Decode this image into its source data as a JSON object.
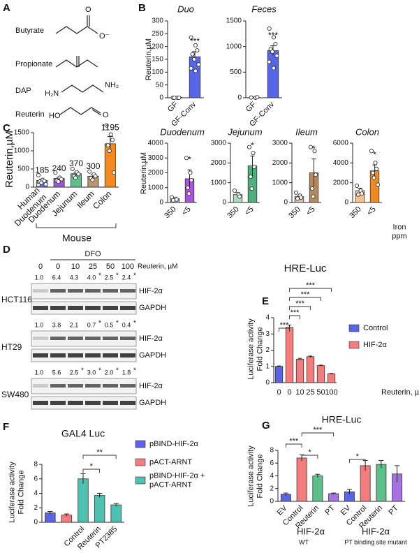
{
  "panel_letters": [
    "A",
    "B",
    "C",
    "D",
    "E",
    "F",
    "G"
  ],
  "panel_a": {
    "molecules": [
      {
        "name": "Butyrate",
        "atoms": [
          "O",
          "O⁻"
        ]
      },
      {
        "name": "Propionate",
        "atoms": []
      },
      {
        "name": "DAP",
        "atoms": [
          "H₂N",
          "NH₂"
        ]
      },
      {
        "name": "Reuterin",
        "atoms": [
          "HO",
          "O"
        ]
      }
    ]
  },
  "panel_d": {
    "treatment": "DFO",
    "concentrations": [
      "0",
      "0",
      "10",
      "25",
      "50",
      "100"
    ],
    "unit": "Reuterin, µM",
    "proteins": [
      "HIF-2α",
      "GAPDH"
    ],
    "blots": [
      {
        "cell_line": "HCT116",
        "quant": [
          "1.0",
          "6.4",
          "4.3",
          "4.0",
          "2.5",
          "2.4"
        ],
        "stars": [
          null,
          null,
          null,
          "*",
          "*",
          "*"
        ]
      },
      {
        "cell_line": "HT29",
        "quant": [
          "1.0",
          "3.8",
          "2.1",
          "0.7",
          "0.5",
          "0.4"
        ],
        "stars": [
          null,
          null,
          null,
          "*",
          "*",
          "*"
        ]
      },
      {
        "cell_line": "SW480",
        "quant": [
          "1.0",
          "5.6",
          "2.5",
          "3.0",
          "2.0",
          "1.8"
        ],
        "stars": [
          null,
          null,
          "*",
          "*",
          "*",
          "*"
        ]
      }
    ]
  },
  "chart_data": [
    {
      "type": "bar",
      "title": "Duo",
      "ylabel": "Reuterin,µM",
      "categories": [
        "GF",
        "GF-Conv"
      ],
      "values": [
        2,
        160
      ],
      "errors": [
        1,
        20
      ],
      "colors": [
        "#ffffff",
        "#5566e8"
      ],
      "points": [
        [
          0,
          0,
          0,
          0
        ],
        [
          235,
          205,
          185,
          170,
          150,
          130,
          115,
          105
        ]
      ],
      "ylim": [
        0,
        300
      ],
      "yticks": [
        0,
        50,
        100,
        150,
        200,
        250,
        300
      ],
      "annotations": [
        "***"
      ]
    },
    {
      "type": "bar",
      "title": "Feces",
      "categories": [
        "GF",
        "GF-Conv"
      ],
      "values": [
        5,
        920
      ],
      "errors": [
        5,
        95
      ],
      "colors": [
        "#ffffff",
        "#5566e8"
      ],
      "points": [
        [
          5,
          0,
          10
        ],
        [
          1350,
          1180,
          1050,
          950,
          900,
          820,
          700,
          580
        ]
      ],
      "ylim": [
        0,
        1500
      ],
      "yticks": [
        0,
        500,
        1000,
        1500
      ],
      "annotations": [
        "***"
      ]
    },
    {
      "type": "bar",
      "ylabel": "Reuterin,µM",
      "categories": [
        "Human\nDuodenum",
        "Duodenum",
        "Jejunum",
        "Ileum",
        "Colon"
      ],
      "values": [
        185,
        240,
        370,
        300,
        1195
      ],
      "errors": [
        35,
        30,
        40,
        35,
        200
      ],
      "show_values": true,
      "colors": [
        "#5b6ef0",
        "#9a55d8",
        "#5dc08a",
        "#b8956a",
        "#f58b1f"
      ],
      "points": [
        [
          330,
          200,
          170,
          150,
          120,
          80,
          60
        ],
        [
          400,
          260,
          220,
          180,
          150
        ],
        [
          500,
          410,
          360,
          300,
          260
        ],
        [
          430,
          350,
          300,
          250,
          200
        ],
        [
          1700,
          1450,
          1300,
          1150,
          1000,
          400
        ]
      ],
      "ylim": [
        0,
        1500
      ],
      "yticks": [
        0,
        500,
        1000,
        1500
      ],
      "group_labels": [
        "Mouse"
      ]
    },
    {
      "type": "bar",
      "title": "Duodenum",
      "ylabel": "Reuterin,µM",
      "categories": [
        "350",
        "<5"
      ],
      "values": [
        250,
        1600
      ],
      "errors": [
        60,
        600
      ],
      "colors": [
        "#c7a8ef",
        "#a955d8"
      ],
      "points": [
        [
          350,
          250,
          200,
          150
        ],
        [
          3000,
          2000,
          1500,
          1000,
          600
        ]
      ],
      "ylim": [
        0,
        4000
      ],
      "yticks": [
        0,
        1000,
        2000,
        3000,
        4000
      ],
      "annotations": [
        "*"
      ]
    },
    {
      "type": "bar",
      "title": "Jejunum",
      "categories": [
        "350",
        "<5"
      ],
      "values": [
        400,
        1850
      ],
      "errors": [
        100,
        500
      ],
      "colors": [
        "#a8dcc0",
        "#4caf7d"
      ],
      "points": [
        [
          600,
          400,
          300
        ],
        [
          2800,
          2500,
          1800,
          1300,
          700
        ]
      ],
      "ylim": [
        0,
        3000
      ],
      "yticks": [
        0,
        1000,
        2000,
        3000
      ],
      "annotations": [
        "*"
      ]
    },
    {
      "type": "bar",
      "title": "Ileum",
      "categories": [
        "350",
        "<5"
      ],
      "values": [
        300,
        1500
      ],
      "errors": [
        60,
        700
      ],
      "colors": [
        "#d6c2a8",
        "#b58a5a"
      ],
      "points": [
        [
          500,
          350,
          250,
          200
        ],
        [
          2800,
          2600,
          1400,
          700,
          300
        ]
      ],
      "ylim": [
        0,
        3000
      ],
      "yticks": [
        0,
        1000,
        2000,
        3000
      ],
      "annotations": [
        "*"
      ]
    },
    {
      "type": "bar",
      "title": "Colon",
      "xlabel": "Iron\nppm",
      "categories": [
        "350",
        "<5"
      ],
      "values": [
        1200,
        3200
      ],
      "errors": [
        250,
        600
      ],
      "colors": [
        "#f7c08a",
        "#f08a1e"
      ],
      "points": [
        [
          1700,
          1200,
          900,
          800
        ],
        [
          5200,
          4000,
          3400,
          3000,
          2500,
          1800
        ]
      ],
      "ylim": [
        0,
        6000
      ],
      "yticks": [
        0,
        2000,
        4000,
        6000
      ],
      "annotations": [
        "*"
      ]
    },
    {
      "type": "bar",
      "title": "HRE-Luc",
      "ylabel": "Luciferase activity\nFold Change",
      "xlabel": "Reuterin, µM",
      "categories": [
        0,
        0,
        10,
        25,
        50,
        100
      ],
      "values": [
        1.0,
        3.4,
        1.45,
        1.6,
        1.05,
        0.55
      ],
      "errors": [
        0.03,
        0.15,
        0.05,
        0.04,
        0.03,
        0.02
      ],
      "colors": [
        "#5b63e6",
        "#f47c7c",
        "#f47c7c",
        "#f47c7c",
        "#f47c7c",
        "#f47c7c"
      ],
      "legend": [
        {
          "name": "Control",
          "color": "#5b63e6"
        },
        {
          "name": "HIF-2α",
          "color": "#f47c7c"
        }
      ],
      "ylim": [
        0,
        4
      ],
      "yticks": [
        0,
        1,
        2,
        3,
        4
      ],
      "annotations": [
        "***",
        "***",
        "***",
        "***",
        "***"
      ]
    },
    {
      "type": "bar",
      "title": "GAL4 Luc",
      "ylabel": "Luciferase activity\nFold Change",
      "categories": [
        null,
        null,
        "Control",
        "Reuterin",
        "PT2385"
      ],
      "values": [
        1.3,
        1.0,
        6.0,
        3.7,
        2.4
      ],
      "errors": [
        0.2,
        0.15,
        0.7,
        0.3,
        0.2
      ],
      "colors": [
        "#5b63e6",
        "#f47c7c",
        "#4fc1b0",
        "#4fc1b0",
        "#4fc1b0"
      ],
      "legend": [
        {
          "name": "pBIND-HIF-2α",
          "color": "#5b63e6"
        },
        {
          "name": "pACT-ARNT",
          "color": "#f47c7c"
        },
        {
          "name": "pBIND-HIF-2α +\npACT-ARNT",
          "color": "#4fc1b0"
        }
      ],
      "ylim": [
        0,
        8
      ],
      "yticks": [
        0,
        2,
        4,
        6,
        8
      ],
      "annotations": [
        "*",
        "**"
      ]
    },
    {
      "type": "bar",
      "title": "HRE-Luc",
      "ylabel": "Luciferase activity\nFold Change",
      "categories": [
        "EV",
        "Control",
        "Reuterin",
        "PT",
        "EV",
        "Control",
        "Reuterin",
        "PT"
      ],
      "values": [
        1.1,
        6.8,
        4.0,
        1.2,
        1.5,
        5.6,
        5.8,
        4.3
      ],
      "errors": [
        0.2,
        0.5,
        0.25,
        0.1,
        0.4,
        0.8,
        0.6,
        1.3
      ],
      "colors": [
        "#5b63e6",
        "#f47c7c",
        "#5dc08a",
        "#a772e0",
        "#5b63e6",
        "#f47c7c",
        "#5dc08a",
        "#a772e0"
      ],
      "ylim": [
        0,
        8
      ],
      "yticks": [
        0,
        2,
        4,
        6,
        8
      ],
      "annotations": [
        "***",
        "*",
        "***",
        "*"
      ],
      "group_labels": [
        "HIF-2α",
        "WT",
        "HIF-2α",
        "PT binding site mutant"
      ]
    }
  ]
}
